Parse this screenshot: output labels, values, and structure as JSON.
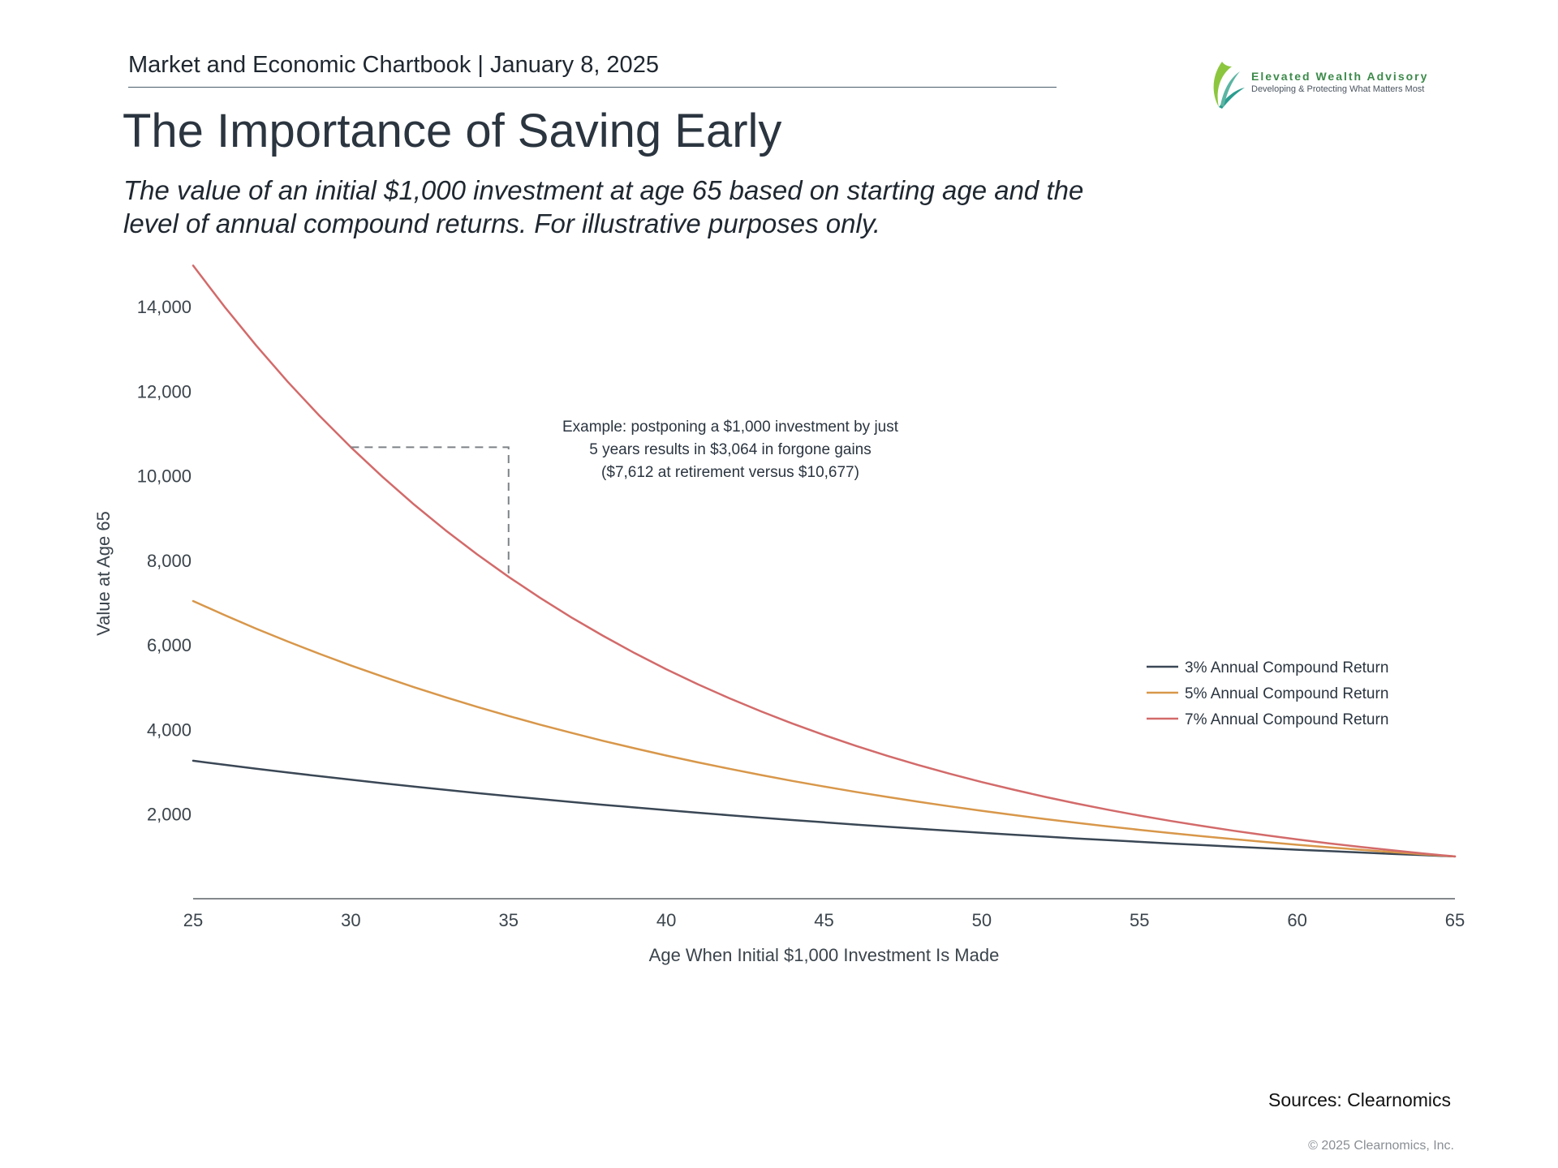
{
  "header": {
    "chartbook_title": "Market and Economic Chartbook | January 8, 2025"
  },
  "logo": {
    "name": "Elevated Wealth Advisory",
    "tagline": "Developing & Protecting What Matters Most"
  },
  "title": "The Importance of Saving Early",
  "subtitle_line1": "The value of an initial $1,000 investment at age 65 based on starting age and the",
  "subtitle_line2": "level of annual compound returns. For illustrative purposes only.",
  "footer": {
    "source": "Sources: Clearnomics",
    "copyright": "© 2025 Clearnomics, Inc."
  },
  "chart_data": {
    "type": "line",
    "xlabel": "Age When Initial $1,000 Investment Is Made",
    "ylabel": "Value at Age 65",
    "xlim": [
      25,
      65
    ],
    "ylim": [
      0,
      15000
    ],
    "x_ticks": [
      25,
      30,
      35,
      40,
      45,
      50,
      55,
      60,
      65
    ],
    "x_tick_labels": [
      "25",
      "30",
      "35",
      "40",
      "45",
      "50",
      "55",
      "60",
      "65"
    ],
    "y_ticks": [
      2000,
      4000,
      6000,
      8000,
      10000,
      12000,
      14000
    ],
    "y_tick_labels": [
      "2,000",
      "4,000",
      "6,000",
      "8,000",
      "10,000",
      "12,000",
      "14,000"
    ],
    "grid": false,
    "legend_position": "right",
    "x": [
      25,
      26,
      27,
      28,
      29,
      30,
      31,
      32,
      33,
      34,
      35,
      36,
      37,
      38,
      39,
      40,
      41,
      42,
      43,
      44,
      45,
      46,
      47,
      48,
      49,
      50,
      51,
      52,
      53,
      54,
      55,
      56,
      57,
      58,
      59,
      60,
      61,
      62,
      63,
      64,
      65
    ],
    "series": [
      {
        "name": "3% Annual Compound Return",
        "color": "#3a4755",
        "values": [
          3262,
          3167,
          3075,
          2985,
          2898,
          2814,
          2732,
          2652,
          2575,
          2500,
          2427,
          2357,
          2288,
          2221,
          2157,
          2094,
          2033,
          1974,
          1916,
          1860,
          1806,
          1754,
          1702,
          1653,
          1605,
          1558,
          1513,
          1469,
          1426,
          1384,
          1344,
          1305,
          1267,
          1230,
          1194,
          1159,
          1126,
          1093,
          1061,
          1030,
          1000
        ]
      },
      {
        "name": "5% Annual Compound Return",
        "color": "#d8974a",
        "values": [
          7040,
          6705,
          6386,
          6082,
          5792,
          5516,
          5253,
          5003,
          4765,
          4538,
          4322,
          4116,
          3920,
          3733,
          3556,
          3386,
          3225,
          3072,
          2925,
          2786,
          2653,
          2527,
          2407,
          2292,
          2183,
          2079,
          1980,
          1886,
          1796,
          1710,
          1629,
          1551,
          1477,
          1407,
          1340,
          1276,
          1216,
          1158,
          1103,
          1050,
          1000
        ]
      },
      {
        "name": "7% Annual Compound Return",
        "color": "#d36a6a",
        "values": [
          14974,
          13995,
          13079,
          12224,
          11424,
          10677,
          9978,
          9325,
          8715,
          8145,
          7612,
          7114,
          6649,
          6214,
          5807,
          5427,
          5072,
          4740,
          4430,
          4141,
          3870,
          3617,
          3380,
          3159,
          2952,
          2759,
          2579,
          2410,
          2252,
          2105,
          1967,
          1838,
          1718,
          1606,
          1501,
          1403,
          1311,
          1225,
          1145,
          1070,
          1000
        ]
      }
    ],
    "annotation": {
      "lines": [
        "Example: postponing a $1,000 investment by just",
        "5 years results in $3,064 in forgone gains",
        "($7,612 at retirement versus $10,677)"
      ],
      "from_x": 30,
      "from_y": 10677,
      "to_x": 35,
      "to_y": 7612
    }
  }
}
